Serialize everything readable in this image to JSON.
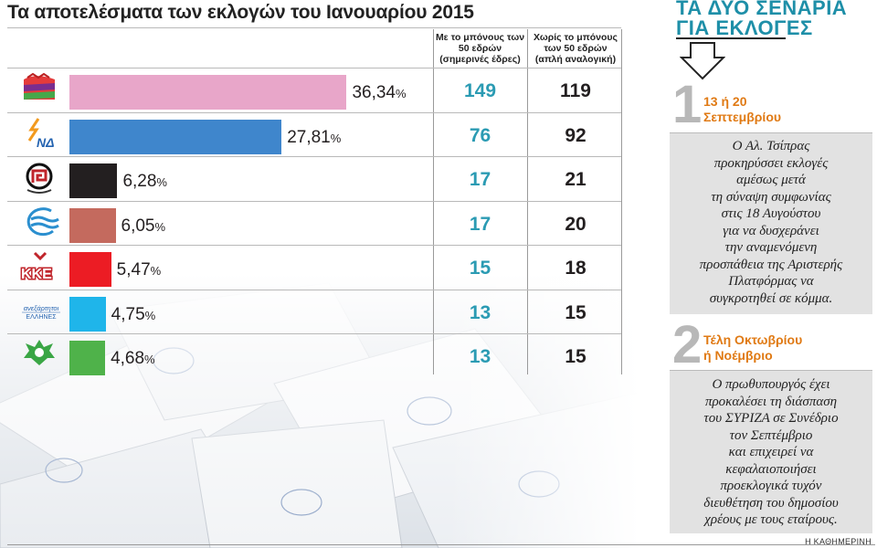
{
  "title": "Τα αποτελέσματα των εκλογών του Ιανουαρίου 2015",
  "columns": {
    "with_bonus": "Με το μπόνους των 50 εδρών (σημερινές έδρες)",
    "without_bonus": "Χωρίς το μπόνους των 50 εδρών (απλή αναλογική)"
  },
  "chart_data": {
    "type": "bar",
    "orientation": "horizontal",
    "title": "Τα αποτελέσματα των εκλογών του Ιανουαρίου 2015",
    "unit": "%",
    "parties": [
      {
        "logo": "syriza-logo",
        "logo_text": "",
        "percent": 36.34,
        "percent_label": "36,34",
        "seats_with_bonus": 149,
        "seats_without_bonus": 119,
        "color": "#e8a6c9"
      },
      {
        "logo": "nd-logo",
        "logo_text": "ΝΔ",
        "percent": 27.81,
        "percent_label": "27,81",
        "seats_with_bonus": 76,
        "seats_without_bonus": 92,
        "color": "#3f86cc"
      },
      {
        "logo": "golden-dawn-logo",
        "logo_text": "",
        "percent": 6.28,
        "percent_label": "6,28",
        "seats_with_bonus": 17,
        "seats_without_bonus": 21,
        "color": "#231f20"
      },
      {
        "logo": "potami-logo",
        "logo_text": "",
        "percent": 6.05,
        "percent_label": "6,05",
        "seats_with_bonus": 17,
        "seats_without_bonus": 20,
        "color": "#c46a5e"
      },
      {
        "logo": "kke-logo",
        "logo_text": "ΚΚΕ",
        "percent": 5.47,
        "percent_label": "5,47",
        "seats_with_bonus": 15,
        "seats_without_bonus": 18,
        "color": "#ec1c24"
      },
      {
        "logo": "anel-logo",
        "logo_text": "ΑΝΕΞΑΡΤΗΤΟΙ ΕΛΛΗΝΕΣ",
        "percent": 4.75,
        "percent_label": "4,75",
        "seats_with_bonus": 13,
        "seats_without_bonus": 15,
        "color": "#1fb5ea"
      },
      {
        "logo": "pasok-logo",
        "logo_text": "",
        "percent": 4.68,
        "percent_label": "4,68",
        "seats_with_bonus": 13,
        "seats_without_bonus": 15,
        "color": "#4fb24a"
      }
    ]
  },
  "scenarios": {
    "title_line1": "ΤΑ ΔΥΟ ΣΕΝΑΡΙΑ",
    "title_line2": "ΓΙΑ ΕΚΛΟΓΕΣ",
    "items": [
      {
        "number": "1",
        "heading_line1": "13 ή 20",
        "heading_line2": "Σεπτεμβρίου",
        "lines": [
          "Ο Αλ. Τσίπρας",
          "προκηρύσσει εκλογές",
          "αμέσως μετά",
          "τη σύναψη συμφωνίας",
          "στις 18 Αυγούστου",
          "για να δυσχεράνει",
          "την αναμενόμενη",
          "προσπάθεια της Αριστερής",
          "Πλατφόρμας να",
          "συγκροτηθεί σε κόμμα."
        ]
      },
      {
        "number": "2",
        "heading_line1": "Τέλη Οκτωβρίου",
        "heading_line2": "ή Νοέμβριο",
        "lines": [
          "Ο πρωθυπουργός έχει",
          "προκαλέσει τη διάσπαση",
          "του ΣΥΡΙΖΑ σε Συνέδριο",
          "τον Σεπτέμβριο",
          "και επιχειρεί να",
          "κεφαλαιοποιήσει",
          "προεκλογικά τυχόν",
          "διευθέτηση του δημοσίου",
          "χρέους με τους εταίρους."
        ]
      }
    ]
  },
  "credit": "Η ΚΑΘΗΜΕΡΙΝΗ",
  "colors": {
    "accent": "#1e8fa8",
    "scenario_heading": "#e07a14",
    "seats_with_bonus": "#2b9bb3"
  }
}
